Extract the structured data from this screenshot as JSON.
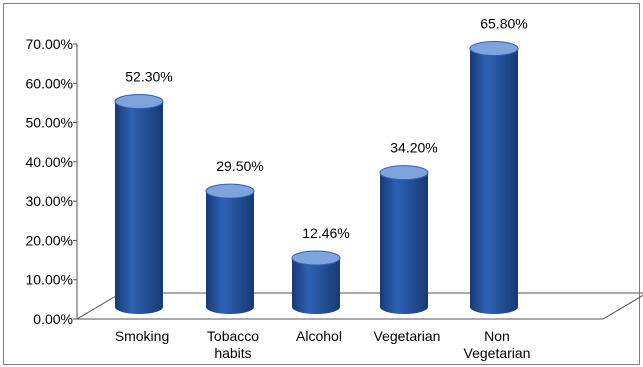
{
  "chart_data": {
    "type": "bar",
    "categories": [
      [
        "Smoking"
      ],
      [
        "Tobacco",
        "habits"
      ],
      [
        "Alcohol"
      ],
      [
        "Vegetarian"
      ],
      [
        "Non",
        "Vegetarian"
      ]
    ],
    "values": [
      52.3,
      29.5,
      12.46,
      34.2,
      65.8
    ],
    "data_labels": [
      "52.30%",
      "29.50%",
      "12.46%",
      "34.20%",
      "65.80%"
    ],
    "y_ticks": [
      "0.00%",
      "10.00%",
      "20.00%",
      "30.00%",
      "40.00%",
      "50.00%",
      "60.00%",
      "70.00%"
    ],
    "ylim": [
      0,
      70
    ],
    "bar_color": "#2f62b4",
    "bar_highlight": "#7fa3dd",
    "bar_shadow": "#173a75",
    "grid": false,
    "style": "3d-cylinder"
  }
}
